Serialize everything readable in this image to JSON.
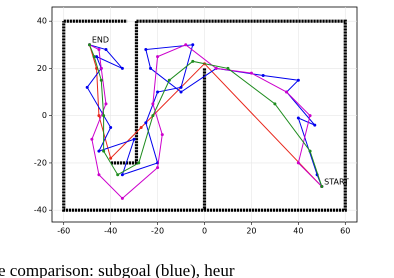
{
  "chart_data": {
    "type": "line",
    "xlim": [
      -65,
      65
    ],
    "ylim": [
      -45,
      46
    ],
    "xticks": [
      -60,
      -40,
      -20,
      0,
      20,
      40,
      60
    ],
    "yticks": [
      -40,
      -20,
      0,
      20,
      40
    ],
    "grid": true,
    "series": [
      {
        "color": "#000000",
        "wall": true,
        "x": [
          -60,
          -33,
          null,
          -29,
          60,
          60,
          -60,
          -60,
          null,
          -29,
          -29,
          -40,
          null,
          0,
          0
        ],
        "y": [
          40,
          40,
          null,
          40,
          40,
          -40,
          -40,
          40,
          null,
          40,
          -20,
          -20,
          null,
          20,
          -40
        ]
      },
      {
        "color": "#e8261b",
        "x": [
          50,
          0,
          -27,
          -40,
          -45,
          -46,
          -49
        ],
        "y": [
          -30,
          22,
          -5,
          -18,
          0,
          20,
          30
        ]
      },
      {
        "color": "#0000ee",
        "x": [
          50,
          48,
          40,
          47,
          35,
          40,
          25,
          5,
          -10,
          -23,
          -25,
          -5,
          -10,
          -20,
          -25,
          -20,
          -35,
          -30,
          -45,
          -40,
          -50,
          -44,
          -46,
          -35,
          -42,
          -49
        ],
        "y": [
          -30,
          -25,
          -1,
          -4,
          10,
          15,
          17,
          20,
          10,
          20,
          28,
          30,
          12,
          10,
          -3,
          -20,
          -25,
          -10,
          -15,
          -5,
          12,
          20,
          25,
          20,
          28,
          30
        ]
      },
      {
        "color": "#cc00cc",
        "x": [
          50,
          40,
          45,
          35,
          20,
          5,
          -8,
          -20,
          -22,
          -18,
          -20,
          -35,
          -45,
          -48,
          -42,
          -44,
          -45,
          -49
        ],
        "y": [
          -30,
          -20,
          0,
          10,
          18,
          20,
          30,
          25,
          5,
          -8,
          -22,
          -35,
          -25,
          -10,
          5,
          20,
          28,
          30
        ]
      },
      {
        "color": "#1e8c1e",
        "x": [
          50,
          45,
          30,
          10,
          -5,
          -15,
          -22,
          -28,
          -37,
          -43,
          -43,
          -44,
          -47,
          -49
        ],
        "y": [
          -30,
          -15,
          5,
          20,
          23,
          15,
          0,
          -20,
          -25,
          -15,
          0,
          15,
          25,
          30
        ]
      }
    ],
    "annotations": [
      {
        "text": "START",
        "x": 51,
        "y": -28
      },
      {
        "text": "END",
        "x": -48,
        "y": 32
      }
    ],
    "caption": "e comparison: subgoal (blue), heur"
  }
}
